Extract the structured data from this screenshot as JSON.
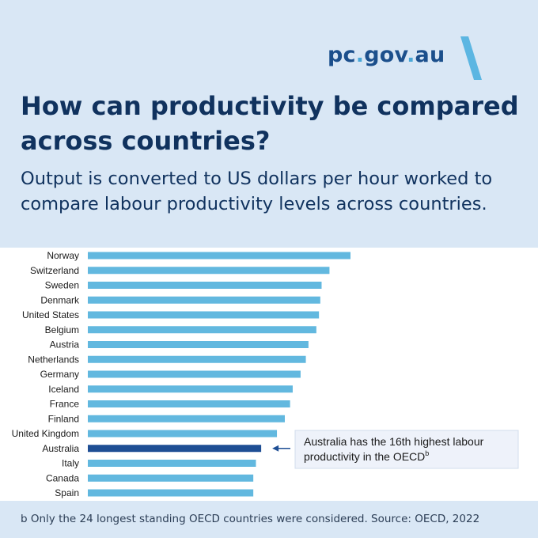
{
  "header": {
    "logo_main": "pc",
    "logo_dot1": ".",
    "logo_gov": "gov",
    "logo_dot2": ".",
    "logo_au": "au",
    "title": "How can productivity be compared across countries?",
    "subtitle": "Output is converted to US dollars per hour worked to compare labour productivity levels across countries."
  },
  "chart_data": {
    "type": "bar",
    "orientation": "horizontal",
    "categories": [
      "Norway",
      "Switzerland",
      "Sweden",
      "Denmark",
      "United States",
      "Belgium",
      "Austria",
      "Netherlands",
      "Germany",
      "Iceland",
      "France",
      "Finland",
      "United Kingdom",
      "Australia",
      "Italy",
      "Canada",
      "Spain"
    ],
    "values": [
      100,
      92,
      89,
      88.5,
      88,
      87,
      84,
      83,
      81,
      78,
      77,
      75,
      72,
      66,
      64,
      63,
      63
    ],
    "highlight": "Australia",
    "colors": {
      "bar": "#62b8df",
      "highlight": "#1e4e94",
      "annotation_bg": "#eef2fa",
      "annotation_border": "#d2dcec",
      "arrow": "#1e4e94"
    },
    "annotation": {
      "text_line1": "Australia has the 16th highest labour",
      "text_line2": "productivity in the OECD",
      "superscript": "b"
    },
    "xlim": [
      0,
      100
    ],
    "grid": false,
    "legend": "none"
  },
  "footnote": "b Only the 24 longest standing OECD countries were considered. Source: OECD, 2022"
}
